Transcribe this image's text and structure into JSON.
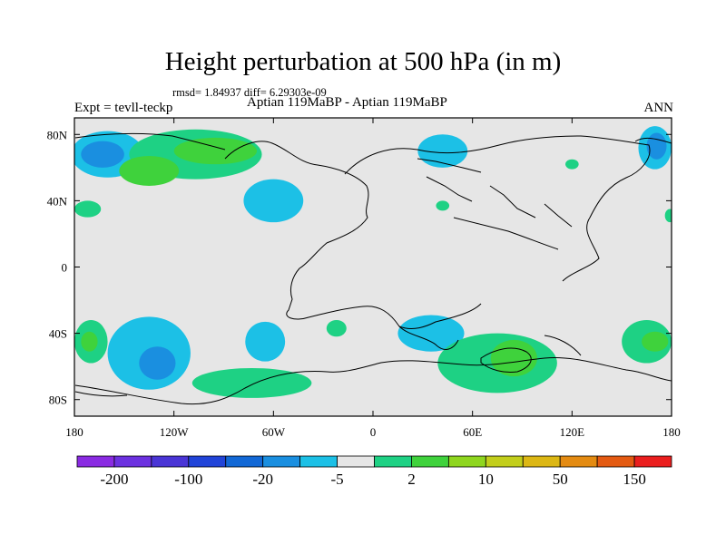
{
  "chart_data": {
    "type": "heatmap",
    "title": "Height perturbation at 500 hPa (in m)",
    "stats": "rmsd= 1.84937 diff= 6.29303e-09",
    "experiment": "Expt = tevll-teckp",
    "subtitle": "Aptian   119MaBP - Aptian   119MaBP",
    "season": "ANN",
    "x_ticks": [
      "180",
      "120W",
      "60W",
      "0",
      "60E",
      "120E",
      "180"
    ],
    "y_ticks": [
      "80N",
      "40N",
      "0",
      "40S",
      "80S"
    ],
    "xlim": [
      -180,
      180
    ],
    "ylim": [
      -90,
      90
    ],
    "colorbar": {
      "colors": [
        "#8a2be2",
        "#6c31e0",
        "#4a35d6",
        "#2144d8",
        "#1268d6",
        "#1a8fe0",
        "#1cc0e6",
        "#e6e6e6",
        "#1ed184",
        "#3fd23c",
        "#8fd61f",
        "#c2ce1b",
        "#dcb714",
        "#e48b12",
        "#e45a12",
        "#ea1e1e"
      ],
      "labels": [
        "-200",
        "-100",
        "-20",
        "-5",
        "2",
        "10",
        "50",
        "150"
      ]
    },
    "regions": [
      {
        "lon": -160,
        "lat": 68,
        "rx": 22,
        "ry": 14,
        "color": "#1cc0e6"
      },
      {
        "lon": -163,
        "lat": 68,
        "rx": 13,
        "ry": 8,
        "color": "#1a8fe0"
      },
      {
        "lon": -107,
        "lat": 68,
        "rx": 40,
        "ry": 15,
        "color": "#1ed184"
      },
      {
        "lon": -95,
        "lat": 70,
        "rx": 25,
        "ry": 8,
        "color": "#3fd23c"
      },
      {
        "lon": -135,
        "lat": 58,
        "rx": 18,
        "ry": 9,
        "color": "#3fd23c"
      },
      {
        "lon": -60,
        "lat": 40,
        "rx": 18,
        "ry": 13,
        "color": "#1cc0e6"
      },
      {
        "lon": 42,
        "lat": 70,
        "rx": 15,
        "ry": 10,
        "color": "#1cc0e6"
      },
      {
        "lon": 170,
        "lat": 72,
        "rx": 10,
        "ry": 13,
        "color": "#1cc0e6"
      },
      {
        "lon": 171,
        "lat": 73,
        "rx": 6,
        "ry": 8,
        "color": "#1a8fe0"
      },
      {
        "lon": 120,
        "lat": 62,
        "rx": 4,
        "ry": 3,
        "color": "#1ed184"
      },
      {
        "lon": -172,
        "lat": 35,
        "rx": 8,
        "ry": 5,
        "color": "#1ed184"
      },
      {
        "lon": 42,
        "lat": 37,
        "rx": 4,
        "ry": 3,
        "color": "#1ed184"
      },
      {
        "lon": -170,
        "lat": -45,
        "rx": 10,
        "ry": 13,
        "color": "#1ed184"
      },
      {
        "lon": -171,
        "lat": -45,
        "rx": 5,
        "ry": 6,
        "color": "#3fd23c"
      },
      {
        "lon": -135,
        "lat": -52,
        "rx": 25,
        "ry": 22,
        "color": "#1cc0e6"
      },
      {
        "lon": -130,
        "lat": -58,
        "rx": 11,
        "ry": 10,
        "color": "#1a8fe0"
      },
      {
        "lon": -65,
        "lat": -45,
        "rx": 12,
        "ry": 12,
        "color": "#1cc0e6"
      },
      {
        "lon": -22,
        "lat": -37,
        "rx": 6,
        "ry": 5,
        "color": "#1ed184"
      },
      {
        "lon": -73,
        "lat": -70,
        "rx": 36,
        "ry": 9,
        "color": "#1ed184"
      },
      {
        "lon": 35,
        "lat": -40,
        "rx": 20,
        "ry": 11,
        "color": "#1cc0e6"
      },
      {
        "lon": 75,
        "lat": -58,
        "rx": 36,
        "ry": 18,
        "color": "#1ed184"
      },
      {
        "lon": 85,
        "lat": -55,
        "rx": 14,
        "ry": 11,
        "color": "#3fd23c"
      },
      {
        "lon": 165,
        "lat": -45,
        "rx": 15,
        "ry": 13,
        "color": "#1ed184"
      },
      {
        "lon": 170,
        "lat": -45,
        "rx": 8,
        "ry": 6,
        "color": "#3fd23c"
      },
      {
        "lon": 179,
        "lat": 31,
        "rx": 3,
        "ry": 4,
        "color": "#1ed184"
      }
    ]
  }
}
